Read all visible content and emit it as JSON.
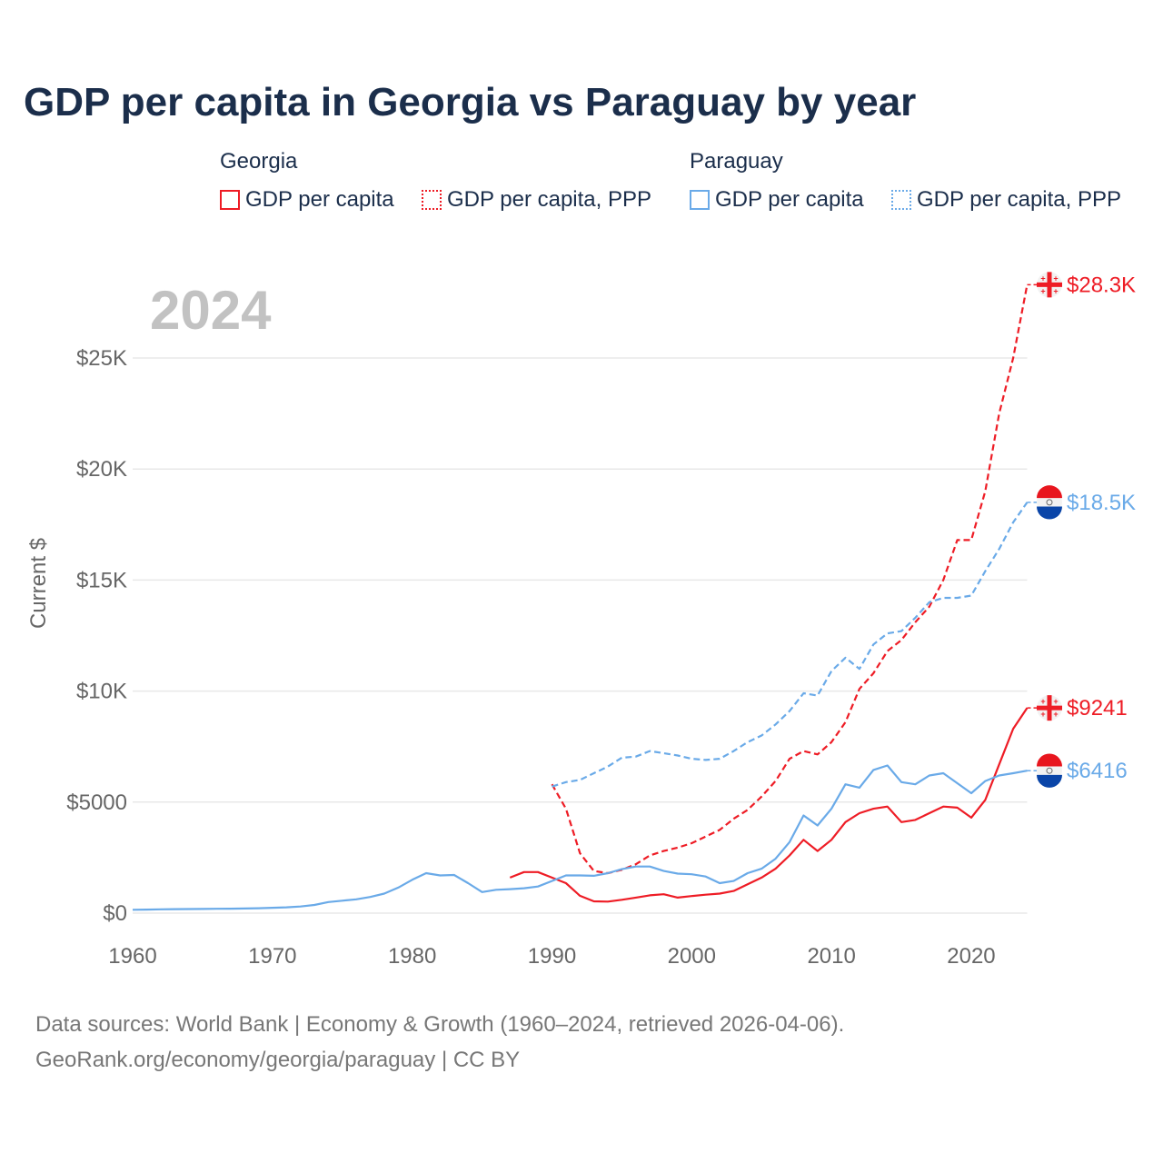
{
  "title": "GDP per capita in Georgia vs Paraguay by year",
  "legend": {
    "groups": [
      {
        "name": "Georgia",
        "items": [
          "GDP per capita",
          "GDP per capita, PPP"
        ],
        "color": "#ee1c25"
      },
      {
        "name": "Paraguay",
        "items": [
          "GDP per capita",
          "GDP per capita, PPP"
        ],
        "color": "#6aaae8"
      }
    ]
  },
  "source": {
    "line1": "Data sources: World Bank | Economy & Growth (1960–2024, retrieved 2026-04-06).",
    "line2": "GeoRank.org/economy/georgia/paraguay | CC BY"
  },
  "chart_data": {
    "type": "line",
    "title": "GDP per capita in Georgia vs Paraguay by year",
    "year_label": "2024",
    "xlabel": "",
    "ylabel": "Current $",
    "xlim": [
      1960,
      2024
    ],
    "ylim": [
      0,
      28300
    ],
    "x_ticks": [
      1960,
      1970,
      1980,
      1990,
      2000,
      2010,
      2020
    ],
    "x_tick_labels": [
      "1960",
      "1970",
      "1980",
      "1990",
      "2000",
      "2010",
      "2020"
    ],
    "y_ticks": [
      0,
      5000,
      10000,
      15000,
      20000,
      25000
    ],
    "y_tick_labels": [
      "$0",
      "$5000",
      "$10K",
      "$15K",
      "$20K",
      "$25K"
    ],
    "grid": true,
    "series": [
      {
        "name": "Georgia GDP per capita",
        "color": "#ee1c25",
        "dashed": false,
        "end_label": "$9241",
        "flag": "georgia",
        "start": 1987,
        "values": [
          1600,
          1850,
          1850,
          1600,
          1350,
          780,
          530,
          520,
          600,
          700,
          800,
          850,
          700,
          770,
          830,
          880,
          1000,
          1300,
          1600,
          2000,
          2600,
          3300,
          2800,
          3300,
          4100,
          4500,
          4700,
          4800,
          4100,
          4200,
          4500,
          4800,
          4750,
          4300,
          5100,
          6700,
          8300,
          9241
        ]
      },
      {
        "name": "Georgia GDP per capita, PPP",
        "color": "#ee1c25",
        "dashed": true,
        "end_label": "$28.3K",
        "flag": "georgia",
        "start": 1990,
        "values": [
          5800,
          4700,
          2700,
          1900,
          1800,
          1950,
          2200,
          2600,
          2800,
          2950,
          3150,
          3450,
          3750,
          4250,
          4650,
          5250,
          5950,
          6950,
          7300,
          7150,
          7700,
          8600,
          10100,
          10800,
          11800,
          12300,
          13100,
          13800,
          15000,
          16800,
          16800,
          19000,
          22500,
          25000,
          28300
        ]
      },
      {
        "name": "Paraguay GDP per capita",
        "color": "#6aaae8",
        "dashed": false,
        "end_label": "$6416",
        "flag": "paraguay",
        "start": 1960,
        "values": [
          150,
          160,
          170,
          180,
          185,
          190,
          195,
          200,
          210,
          220,
          240,
          260,
          300,
          370,
          500,
          560,
          620,
          730,
          880,
          1150,
          1500,
          1800,
          1700,
          1720,
          1350,
          950,
          1050,
          1080,
          1120,
          1200,
          1450,
          1700,
          1700,
          1680,
          1800,
          1980,
          2100,
          2100,
          1900,
          1780,
          1750,
          1650,
          1350,
          1450,
          1800,
          2000,
          2450,
          3200,
          4400,
          3950,
          4700,
          5800,
          5650,
          6450,
          6650,
          5900,
          5800,
          6200,
          6300,
          5850,
          5400,
          5950,
          6200,
          6300,
          6416
        ]
      },
      {
        "name": "Paraguay GDP per capita, PPP",
        "color": "#6aaae8",
        "dashed": true,
        "end_label": "$18.5K",
        "flag": "paraguay",
        "start": 1990,
        "values": [
          5700,
          5900,
          6000,
          6300,
          6600,
          7000,
          7050,
          7300,
          7200,
          7100,
          6950,
          6900,
          6950,
          7300,
          7700,
          8000,
          8500,
          9100,
          9900,
          9800,
          10900,
          11500,
          11000,
          12100,
          12600,
          12700,
          13300,
          14000,
          14200,
          14200,
          14300,
          15400,
          16400,
          17600,
          18500
        ]
      }
    ]
  }
}
